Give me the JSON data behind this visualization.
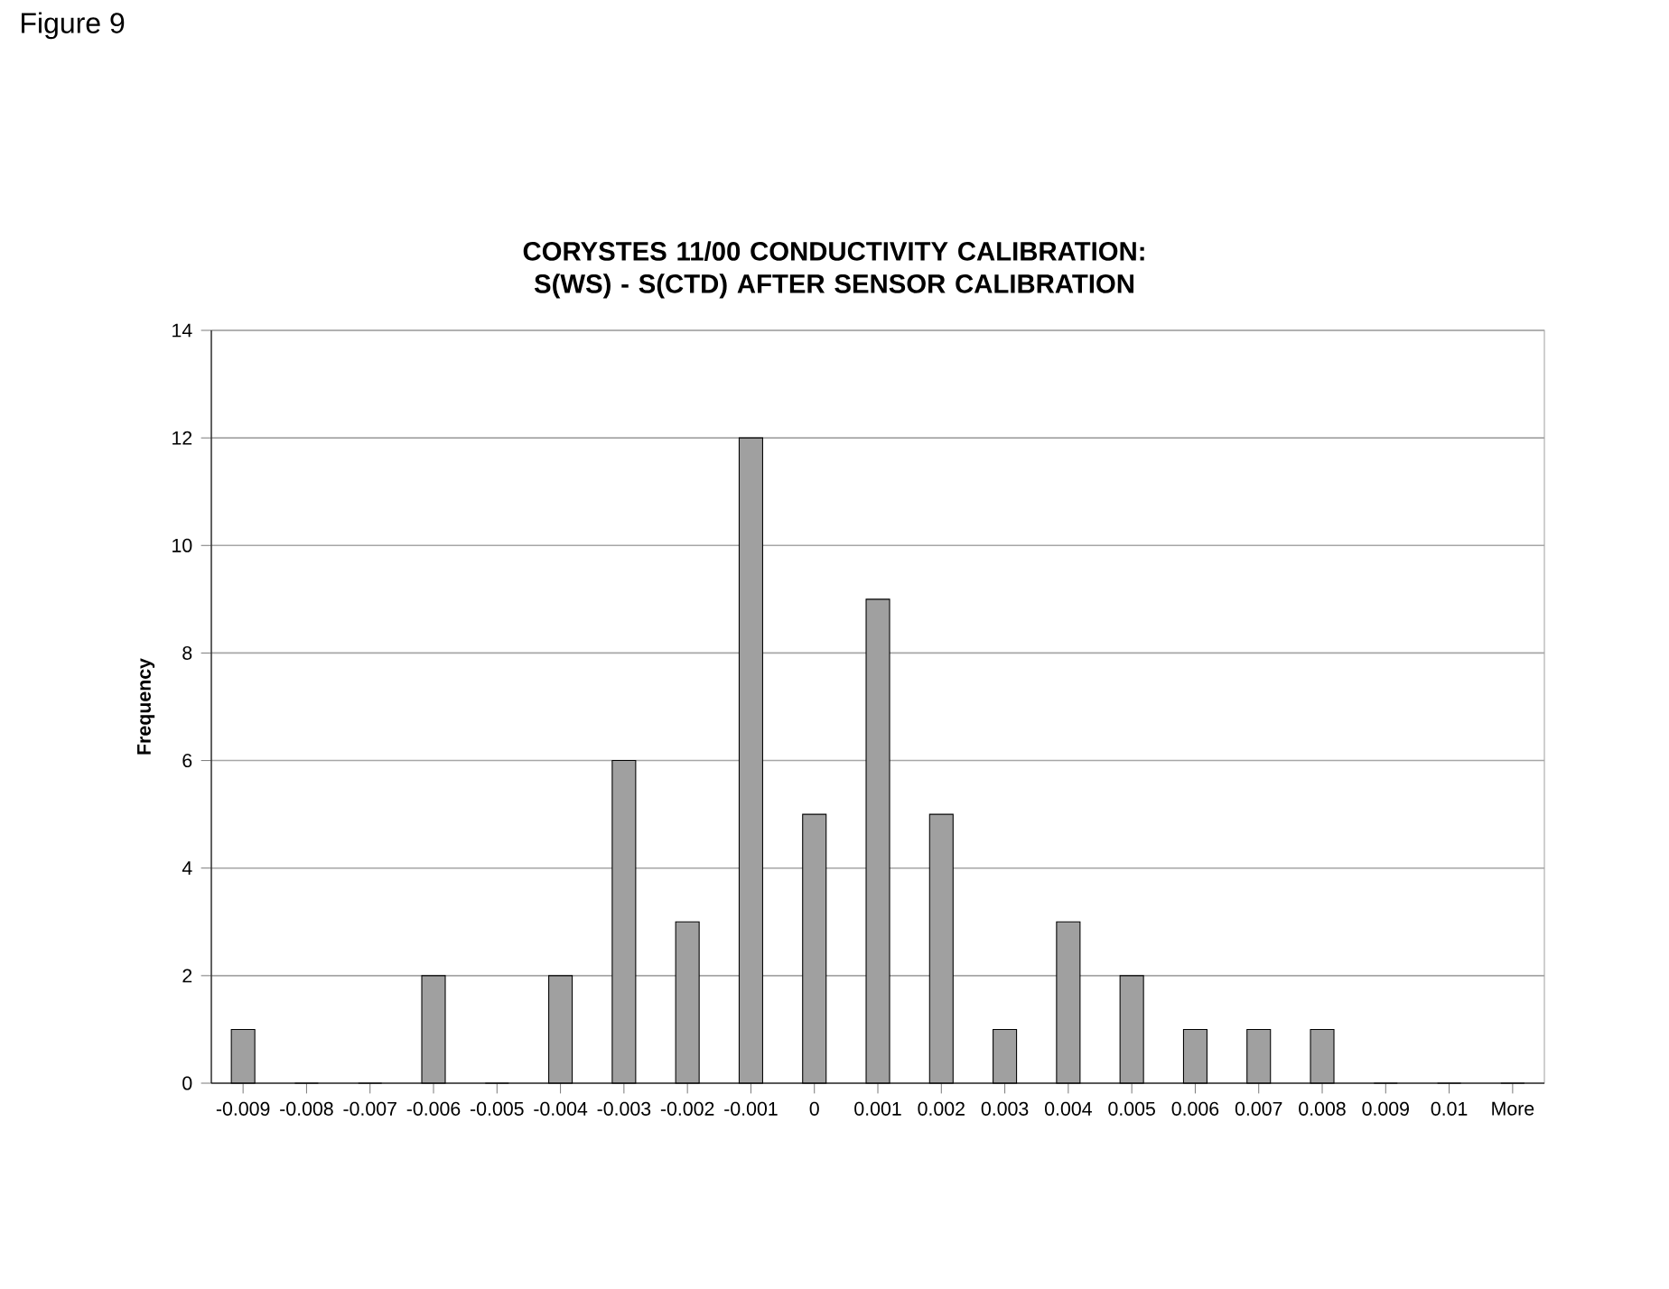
{
  "chart_data": {
    "type": "bar",
    "title": "CORYSTES 11/00 CONDUCTIVITY CALIBRATION: S(WS) - S(CTD) AFTER SENSOR CALIBRATION",
    "ylabel": "Frequency",
    "annotations": [
      "Figure 9"
    ],
    "categories": [
      "-0.009",
      "-0.008",
      "-0.007",
      "-0.006",
      "-0.005",
      "-0.004",
      "-0.003",
      "-0.002",
      "-0.001",
      "0",
      "0.001",
      "0.002",
      "0.003",
      "0.004",
      "0.005",
      "0.006",
      "0.007",
      "0.008",
      "0.009",
      "0.01",
      "More"
    ],
    "values": [
      1,
      0,
      0,
      2,
      0,
      2,
      6,
      3,
      12,
      5,
      9,
      5,
      1,
      3,
      2,
      1,
      1,
      1,
      0,
      0,
      0
    ],
    "color": "#a0a0a0",
    "ylim": [
      0,
      14
    ],
    "yticks": [
      0,
      2,
      4,
      6,
      8,
      10,
      12,
      14
    ],
    "grid": "y"
  }
}
